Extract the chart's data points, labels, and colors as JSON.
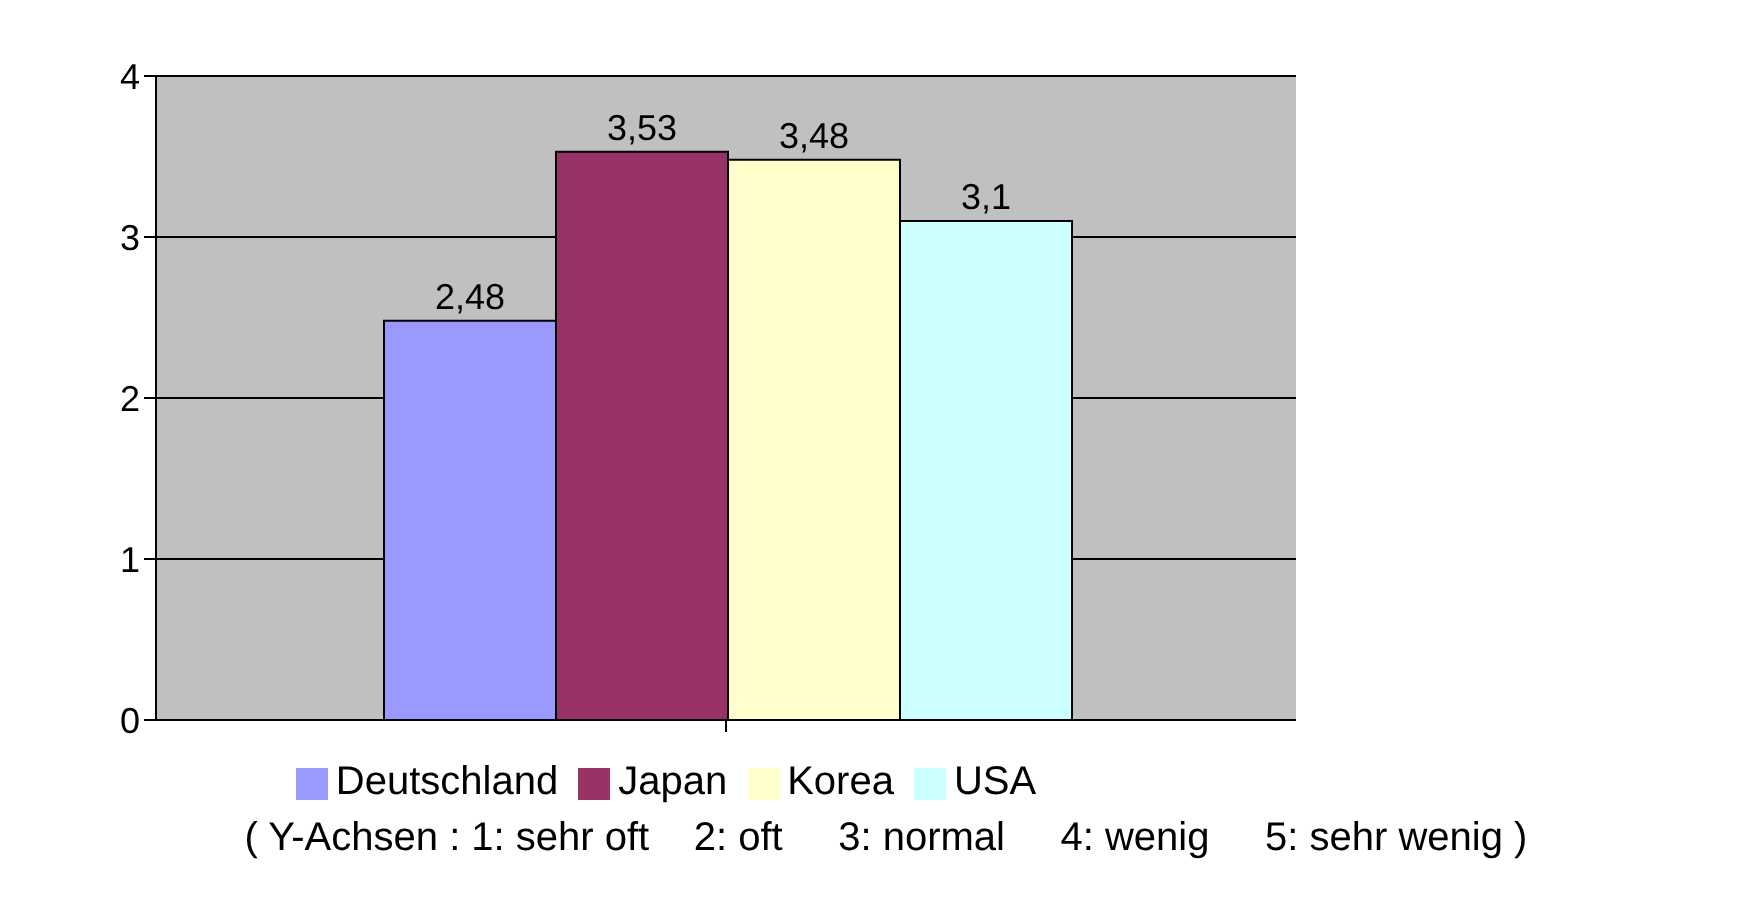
{
  "chart_data": {
    "type": "bar",
    "categories": [
      null
    ],
    "series": [
      {
        "name": "Deutschland",
        "color": "#9999ff",
        "values": [
          2.48
        ],
        "value_labels": [
          "2,48"
        ]
      },
      {
        "name": "Japan",
        "color": "#993366",
        "values": [
          3.53
        ],
        "value_labels": [
          "3,53"
        ]
      },
      {
        "name": "Korea",
        "color": "#ffffcc",
        "values": [
          3.48
        ],
        "value_labels": [
          "3,48"
        ]
      },
      {
        "name": "USA",
        "color": "#ccffff",
        "values": [
          3.1
        ],
        "value_labels": [
          "3,1"
        ]
      }
    ],
    "ylim": [
      0,
      4
    ],
    "yticks": [
      0,
      1,
      2,
      3,
      4
    ],
    "grid": "y",
    "legend": "bottom",
    "annotations": [
      "( Y-Achsen : 1: sehr oft    2: oft     3: normal     4: wenig     5: sehr wenig )"
    ]
  }
}
